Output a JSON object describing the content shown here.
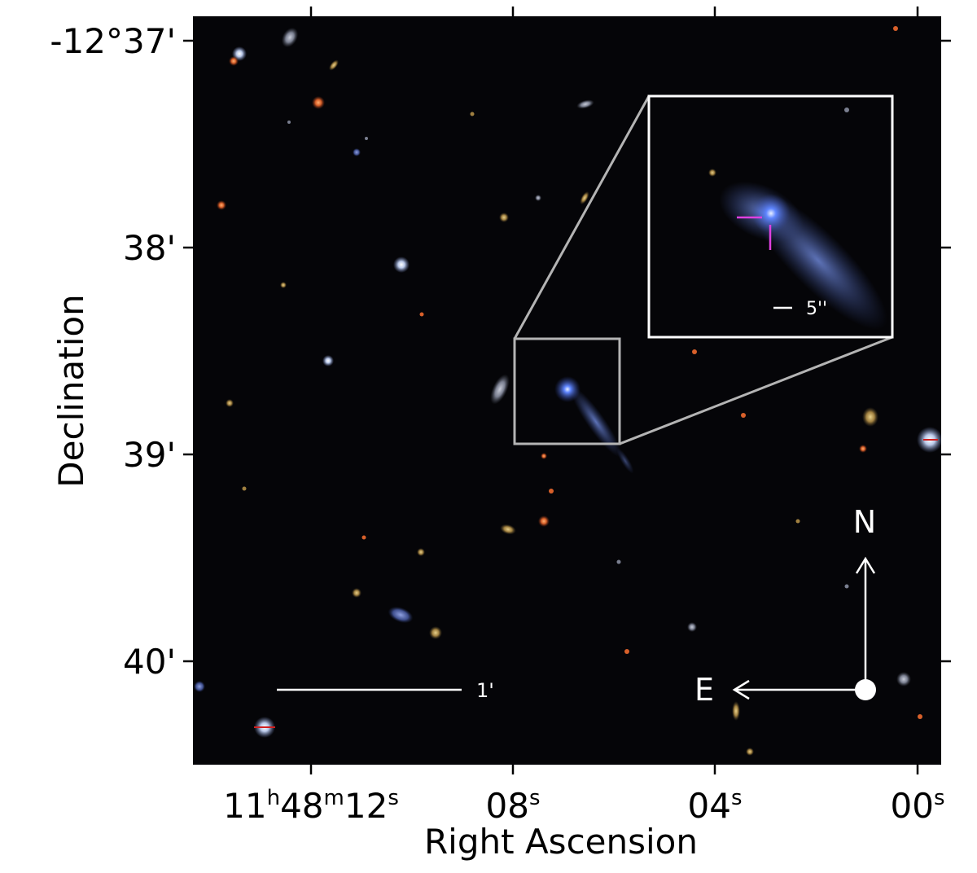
{
  "axes": {
    "xlabel": "Right Ascension",
    "ylabel": "Declination",
    "x_ticks": [
      {
        "main": "11",
        "sup1": "h",
        "mid": "48",
        "sup2": "m",
        "last": "12",
        "sup3": "s"
      },
      {
        "last": "08",
        "sup3": "s"
      },
      {
        "last": "04",
        "sup3": "s"
      },
      {
        "last": "00",
        "sup3": "s"
      }
    ],
    "y_ticks": [
      "-12°37'",
      "38'",
      "39'",
      "40'"
    ]
  },
  "overlays": {
    "scale_bar_label": "1'",
    "inset_scale_label": "5''",
    "compass_north": "N",
    "compass_east": "E"
  },
  "colors": {
    "sky_background": "#050508",
    "target_galaxy": "#5a78e0",
    "marker": "#e040e0",
    "inset_frame": "#ffffff",
    "zoom_box": "#b4b4b4"
  }
}
